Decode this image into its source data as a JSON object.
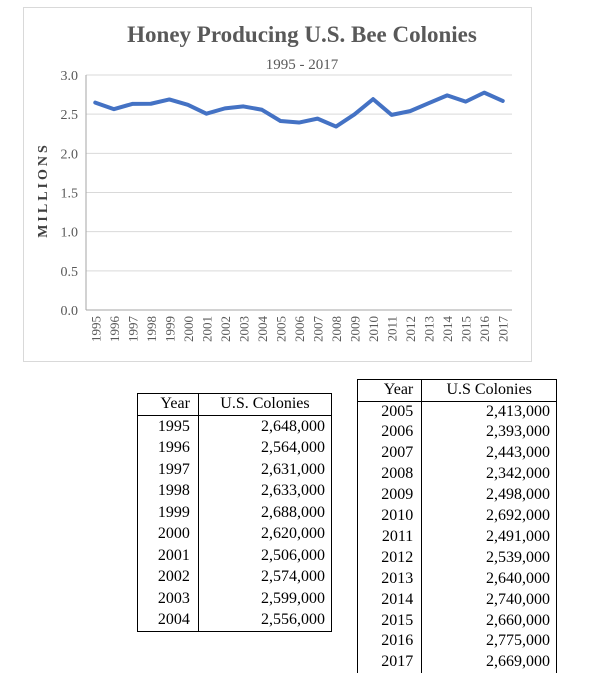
{
  "chart_data": {
    "type": "line",
    "title": "Honey Producing U.S. Bee Colonies",
    "subtitle": "1995 - 2017",
    "ylabel": "MILLIONS",
    "xlabel": "",
    "ylim": [
      0,
      3.0
    ],
    "yticks": [
      "0.0",
      "0.5",
      "1.0",
      "1.5",
      "2.0",
      "2.5",
      "3.0"
    ],
    "grid": true,
    "color": "#4472c4",
    "categories": [
      "1995",
      "1996",
      "1997",
      "1998",
      "1999",
      "2000",
      "2001",
      "2002",
      "2003",
      "2004",
      "2005",
      "2006",
      "2007",
      "2008",
      "2009",
      "2010",
      "2011",
      "2012",
      "2013",
      "2014",
      "2015",
      "2016",
      "2017"
    ],
    "values": [
      2.648,
      2.564,
      2.631,
      2.633,
      2.688,
      2.62,
      2.506,
      2.574,
      2.599,
      2.556,
      2.413,
      2.393,
      2.443,
      2.342,
      2.498,
      2.692,
      2.491,
      2.539,
      2.64,
      2.74,
      2.66,
      2.775,
      2.669
    ]
  },
  "table_left": {
    "headers": [
      "Year",
      "U.S. Colonies"
    ],
    "rows": [
      [
        "1995",
        "2,648,000"
      ],
      [
        "1996",
        "2,564,000"
      ],
      [
        "1997",
        "2,631,000"
      ],
      [
        "1998",
        "2,633,000"
      ],
      [
        "1999",
        "2,688,000"
      ],
      [
        "2000",
        "2,620,000"
      ],
      [
        "2001",
        "2,506,000"
      ],
      [
        "2002",
        "2,574,000"
      ],
      [
        "2003",
        "2,599,000"
      ],
      [
        "2004",
        "2,556,000"
      ]
    ]
  },
  "table_right": {
    "headers": [
      "Year",
      "U.S Colonies"
    ],
    "rows": [
      [
        "2005",
        "2,413,000"
      ],
      [
        "2006",
        "2,393,000"
      ],
      [
        "2007",
        "2,443,000"
      ],
      [
        "2008",
        "2,342,000"
      ],
      [
        "2009",
        "2,498,000"
      ],
      [
        "2010",
        "2,692,000"
      ],
      [
        "2011",
        "2,491,000"
      ],
      [
        "2012",
        "2,539,000"
      ],
      [
        "2013",
        "2,640,000"
      ],
      [
        "2014",
        "2,740,000"
      ],
      [
        "2015",
        "2,660,000"
      ],
      [
        "2016",
        "2,775,000"
      ],
      [
        "2017",
        "2,669,000"
      ]
    ]
  }
}
